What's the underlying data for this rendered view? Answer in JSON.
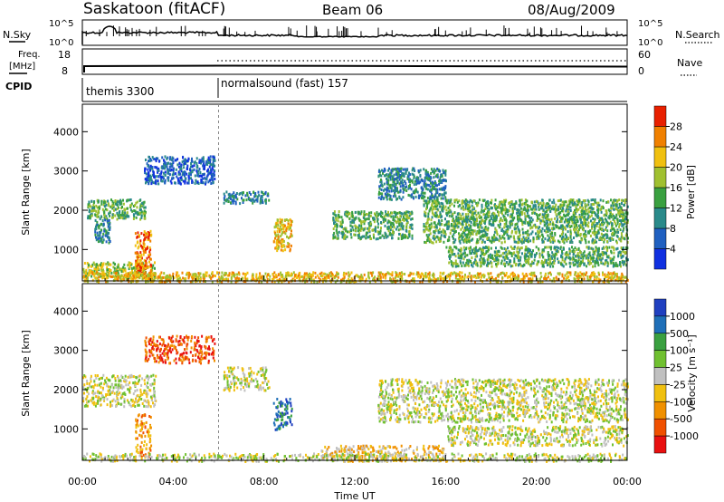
{
  "header": {
    "title": "Saskatoon (fitACF)",
    "beam": "Beam 06",
    "date": "08/Aug/2009"
  },
  "summary": {
    "nsky_label": "N.Sky",
    "nsky_ticks": [
      "10^5",
      "10^0"
    ],
    "nsearch_label": "N.Search",
    "nsearch_ticks": [
      "10^5",
      "10^0"
    ],
    "freq_label_top": "Freq.",
    "freq_label_unit": "[MHz]",
    "freq_ticks": [
      "18",
      "8"
    ],
    "nave_label": "Nave",
    "nave_ticks": [
      "60",
      "0"
    ],
    "cpid_label": "CPID",
    "cpid_segments": [
      {
        "label": "themis 3300",
        "start_hour": 0,
        "end_hour": 6
      },
      {
        "label": "normalsound (fast) 157",
        "start_hour": 6,
        "end_hour": 24
      }
    ]
  },
  "chart_data": [
    {
      "type": "heatmap",
      "panel": "power",
      "ylabel": "Slant Range [km]",
      "yticks": [
        1000,
        2000,
        3000,
        4000
      ],
      "ylim": [
        200,
        4700
      ],
      "colorbar_label": "Power [dB]",
      "colorbar_ticks": [
        "4",
        "8",
        "12",
        "16",
        "20",
        "24",
        "28"
      ],
      "colors": [
        "#1030e0",
        "#2060c0",
        "#2a8a8a",
        "#3aa040",
        "#a0c030",
        "#f0c010",
        "#f08000",
        "#e82000"
      ],
      "echo_regions": [
        {
          "x": [
            0.2,
            2.8
          ],
          "y": [
            1800,
            2300
          ],
          "level": 3
        },
        {
          "x": [
            0.0,
            3.2
          ],
          "y": [
            300,
            700
          ],
          "level": 4
        },
        {
          "x": [
            2.3,
            3.0
          ],
          "y": [
            300,
            1500
          ],
          "level": 6
        },
        {
          "x": [
            2.7,
            5.8
          ],
          "y": [
            2700,
            3400
          ],
          "level": 1
        },
        {
          "x": [
            0.5,
            1.2
          ],
          "y": [
            1200,
            1800
          ],
          "level": 2
        },
        {
          "x": [
            6.2,
            8.2
          ],
          "y": [
            2200,
            2500
          ],
          "level": 2
        },
        {
          "x": [
            8.4,
            9.2
          ],
          "y": [
            1000,
            1800
          ],
          "level": 5
        },
        {
          "x": [
            11.0,
            14.5
          ],
          "y": [
            1300,
            2000
          ],
          "level": 3
        },
        {
          "x": [
            13.0,
            16.0
          ],
          "y": [
            2300,
            3100
          ],
          "level": 2
        },
        {
          "x": [
            15.0,
            24.0
          ],
          "y": [
            1200,
            2300
          ],
          "level": 3
        },
        {
          "x": [
            16.0,
            24.0
          ],
          "y": [
            600,
            1100
          ],
          "level": 3
        },
        {
          "x": [
            0.0,
            24.0
          ],
          "y": [
            200,
            450
          ],
          "level": 5
        }
      ]
    },
    {
      "type": "heatmap",
      "panel": "velocity",
      "ylabel": "Slant Range [km]",
      "yticks": [
        1000,
        2000,
        3000,
        4000
      ],
      "ylim": [
        200,
        4700
      ],
      "colorbar_label": "Velocity [m s⁻¹]",
      "colorbar_ticks": [
        "1000",
        "500",
        "100",
        "25",
        "-25",
        "-100",
        "-500",
        "-1000"
      ],
      "colors": [
        "#2040c0",
        "#1f6fb8",
        "#3aa040",
        "#70c030",
        "#c0c0c0",
        "#f0c010",
        "#f09000",
        "#f05000",
        "#e81010"
      ],
      "echo_regions": [
        {
          "x": [
            0.0,
            3.2
          ],
          "y": [
            1600,
            2400
          ],
          "level": 4
        },
        {
          "x": [
            2.3,
            3.0
          ],
          "y": [
            300,
            1400
          ],
          "level": 6
        },
        {
          "x": [
            2.7,
            5.8
          ],
          "y": [
            2700,
            3400
          ],
          "level": 7
        },
        {
          "x": [
            6.2,
            8.2
          ],
          "y": [
            2000,
            2600
          ],
          "level": 4
        },
        {
          "x": [
            8.4,
            9.2
          ],
          "y": [
            1000,
            1800
          ],
          "level": 1
        },
        {
          "x": [
            10.5,
            16.0
          ],
          "y": [
            200,
            600
          ],
          "level": 5
        },
        {
          "x": [
            13.0,
            24.0
          ],
          "y": [
            1200,
            2300
          ],
          "level": 4
        },
        {
          "x": [
            16.0,
            24.0
          ],
          "y": [
            600,
            1100
          ],
          "level": 4
        },
        {
          "x": [
            0.0,
            24.0
          ],
          "y": [
            200,
            400
          ],
          "level": 4
        }
      ]
    }
  ],
  "xaxis": {
    "label": "Time UT",
    "ticks": [
      "00:00",
      "04:00",
      "08:00",
      "12:00",
      "16:00",
      "20:00",
      "00:00"
    ],
    "range_hours": [
      0,
      24
    ]
  }
}
